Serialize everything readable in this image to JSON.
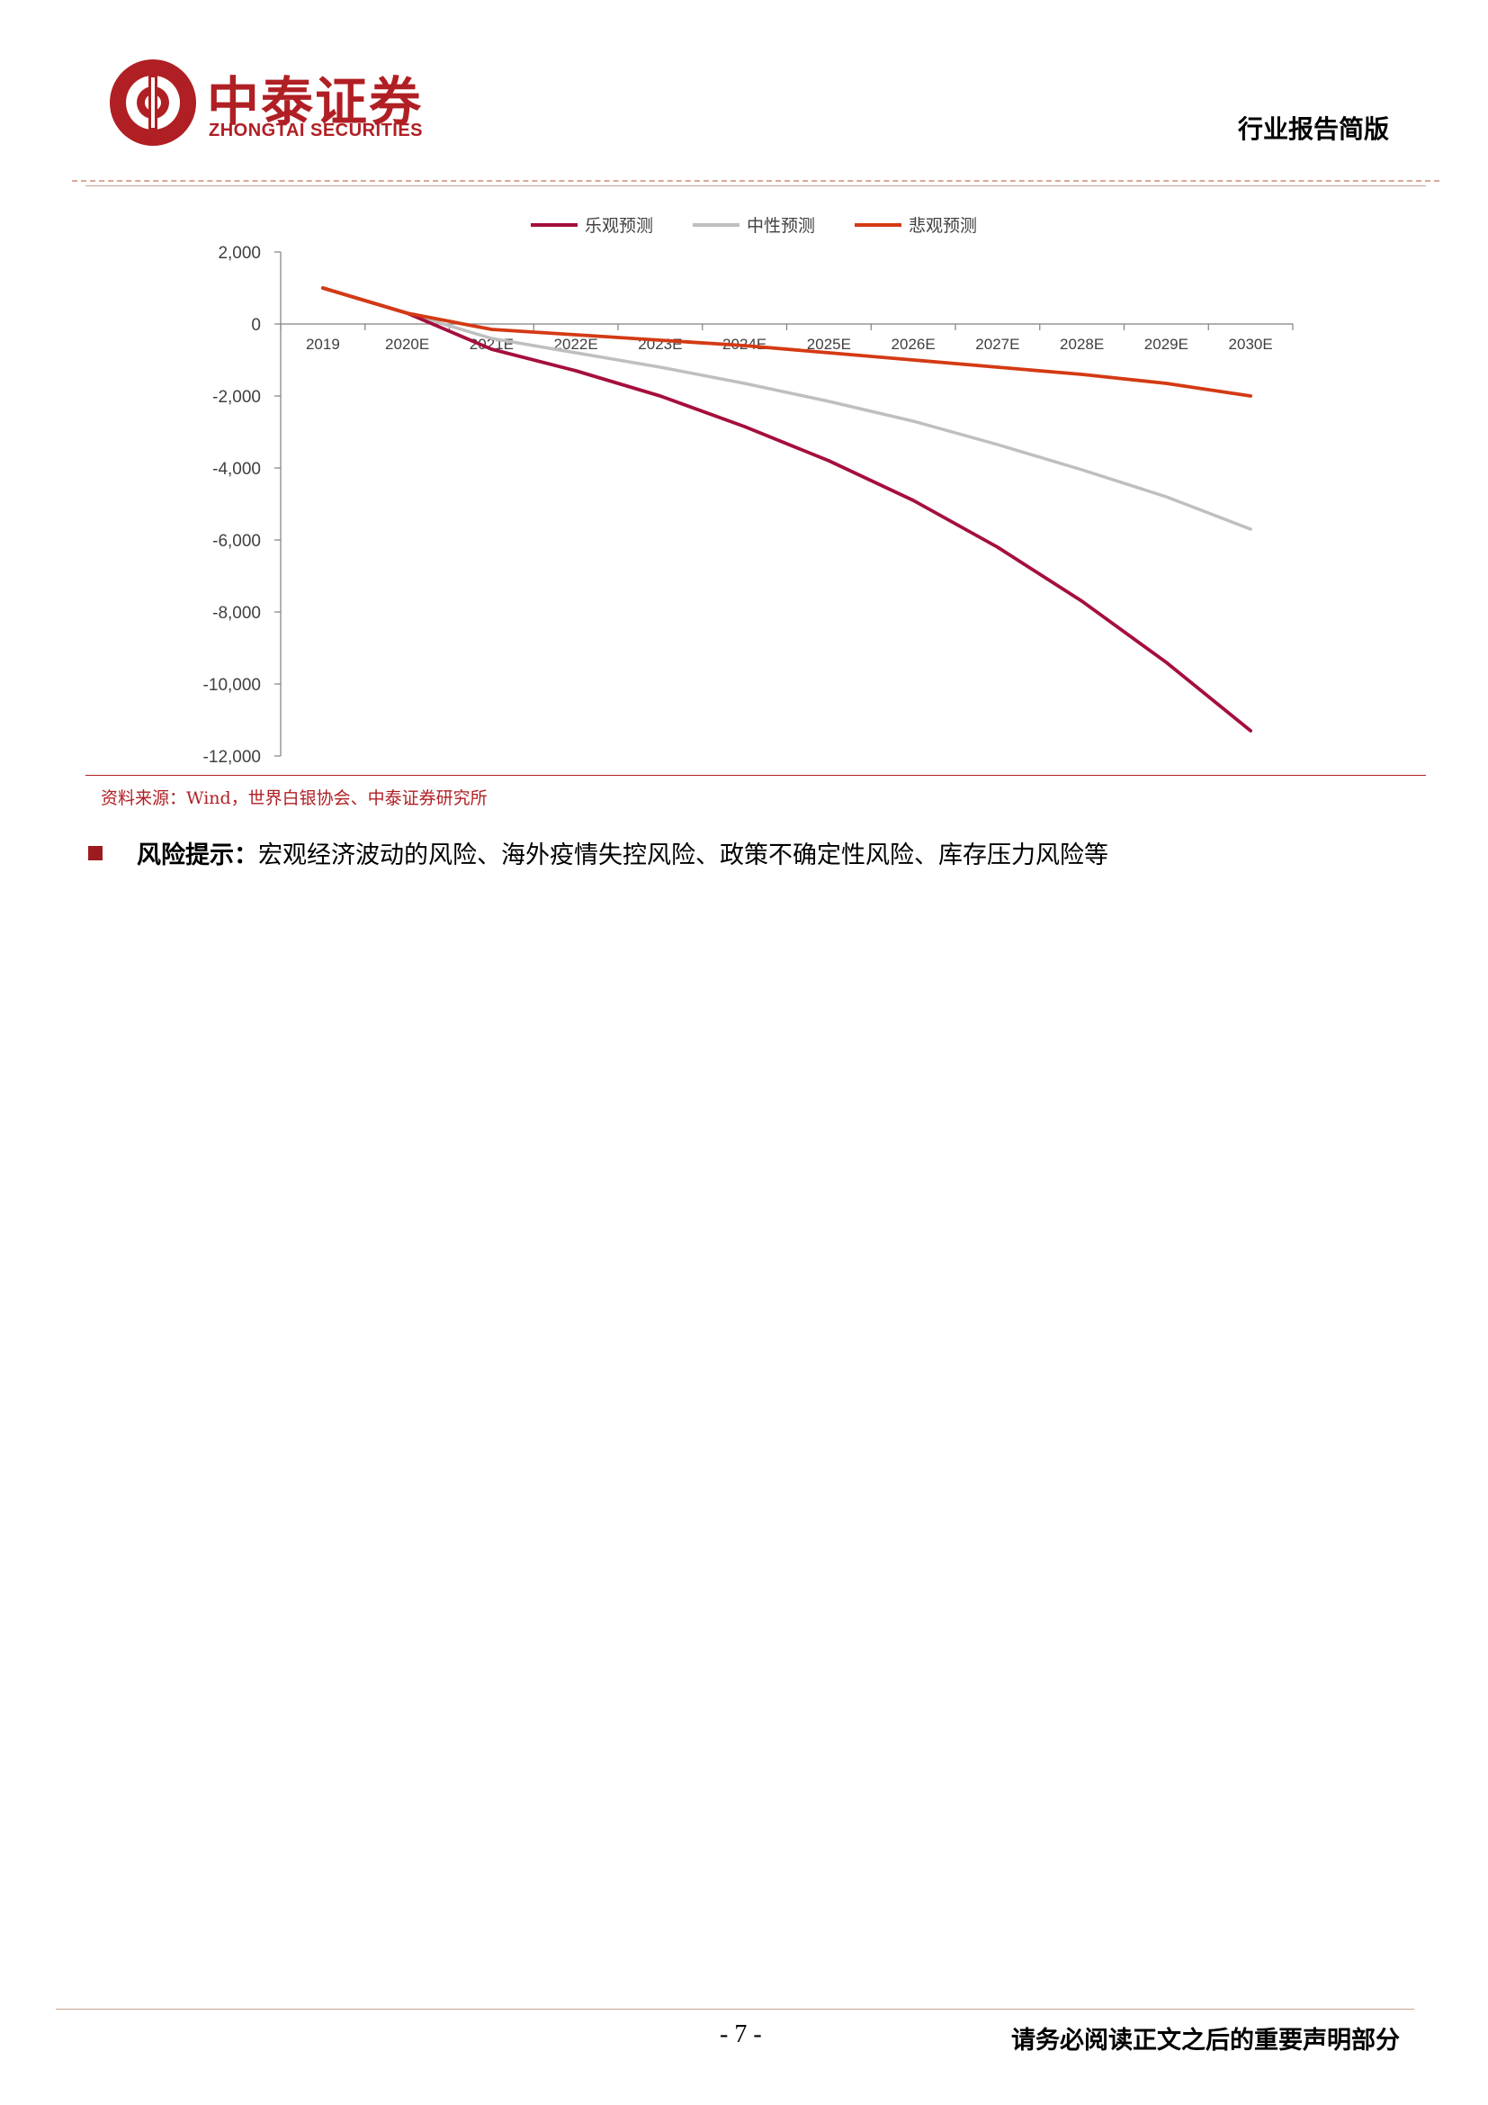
{
  "header": {
    "company_cn": "中泰证券",
    "company_en": "ZHONGTAI SECURITIES",
    "report_type": "行业报告简版"
  },
  "colors": {
    "brand": "#b01f24",
    "optimistic": "#a50f3c",
    "neutral": "#bfbfbf",
    "pessimistic": "#d43a14"
  },
  "chart_data": {
    "type": "line",
    "categories": [
      "2019",
      "2020E",
      "2021E",
      "2022E",
      "2023E",
      "2024E",
      "2025E",
      "2026E",
      "2027E",
      "2028E",
      "2029E",
      "2030E"
    ],
    "series": [
      {
        "name": "乐观预测",
        "values": [
          1000,
          300,
          -700,
          -1300,
          -2000,
          -2850,
          -3800,
          -4900,
          -6200,
          -7700,
          -9400,
          -11300
        ]
      },
      {
        "name": "中性预测",
        "values": [
          1000,
          300,
          -400,
          -800,
          -1200,
          -1650,
          -2150,
          -2700,
          -3350,
          -4050,
          -4800,
          -5700
        ]
      },
      {
        "name": "悲观预测",
        "values": [
          1000,
          300,
          -150,
          -300,
          -450,
          -600,
          -800,
          -1000,
          -1200,
          -1400,
          -1650,
          -2000
        ]
      }
    ],
    "y_ticks": [
      "2,000",
      "0",
      "-2,000",
      "-4,000",
      "-6,000",
      "-8,000",
      "-10,000",
      "-12,000"
    ],
    "ylim": [
      -12000,
      2000
    ],
    "legend": "top-center",
    "grid": false
  },
  "source": "资料来源：Wind，世界白银协会、中泰证券研究所",
  "risk": {
    "label": "风险提示：",
    "text": "宏观经济波动的风险、海外疫情失控风险、政策不确定性风险、库存压力风险等"
  },
  "footer": {
    "page": "- 7 -",
    "note": "请务必阅读正文之后的重要声明部分"
  }
}
